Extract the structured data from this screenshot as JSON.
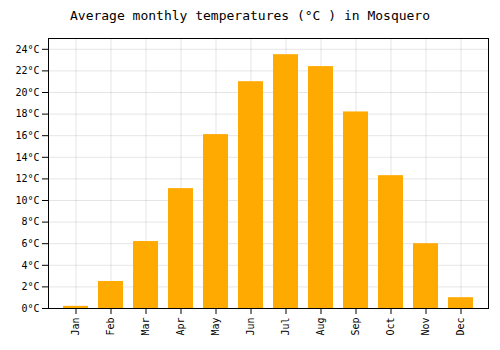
{
  "chart_data": {
    "type": "bar",
    "title": "Average monthly temperatures (°C ) in Mosquero",
    "categories": [
      "Jan",
      "Feb",
      "Mar",
      "Apr",
      "May",
      "Jun",
      "Jul",
      "Aug",
      "Sep",
      "Oct",
      "Nov",
      "Dec"
    ],
    "values": [
      0.2,
      2.5,
      6.2,
      11.1,
      16.1,
      21.0,
      23.5,
      22.4,
      18.2,
      12.3,
      6.0,
      1.0
    ],
    "color": "#FFAA00",
    "ylim": [
      0,
      25
    ],
    "yticks": [
      {
        "value": 0,
        "label": "0°C"
      },
      {
        "value": 2,
        "label": "2°C"
      },
      {
        "value": 4,
        "label": "4°C"
      },
      {
        "value": 6,
        "label": "6°C"
      },
      {
        "value": 8,
        "label": "8°C"
      },
      {
        "value": 10,
        "label": "10°C"
      },
      {
        "value": 12,
        "label": "12°C"
      },
      {
        "value": 14,
        "label": "14°C"
      },
      {
        "value": 16,
        "label": "16°C"
      },
      {
        "value": 18,
        "label": "18°C"
      },
      {
        "value": 20,
        "label": "20°C"
      },
      {
        "value": 22,
        "label": "22°C"
      },
      {
        "value": 24,
        "label": "24°C"
      }
    ],
    "grid": true
  }
}
